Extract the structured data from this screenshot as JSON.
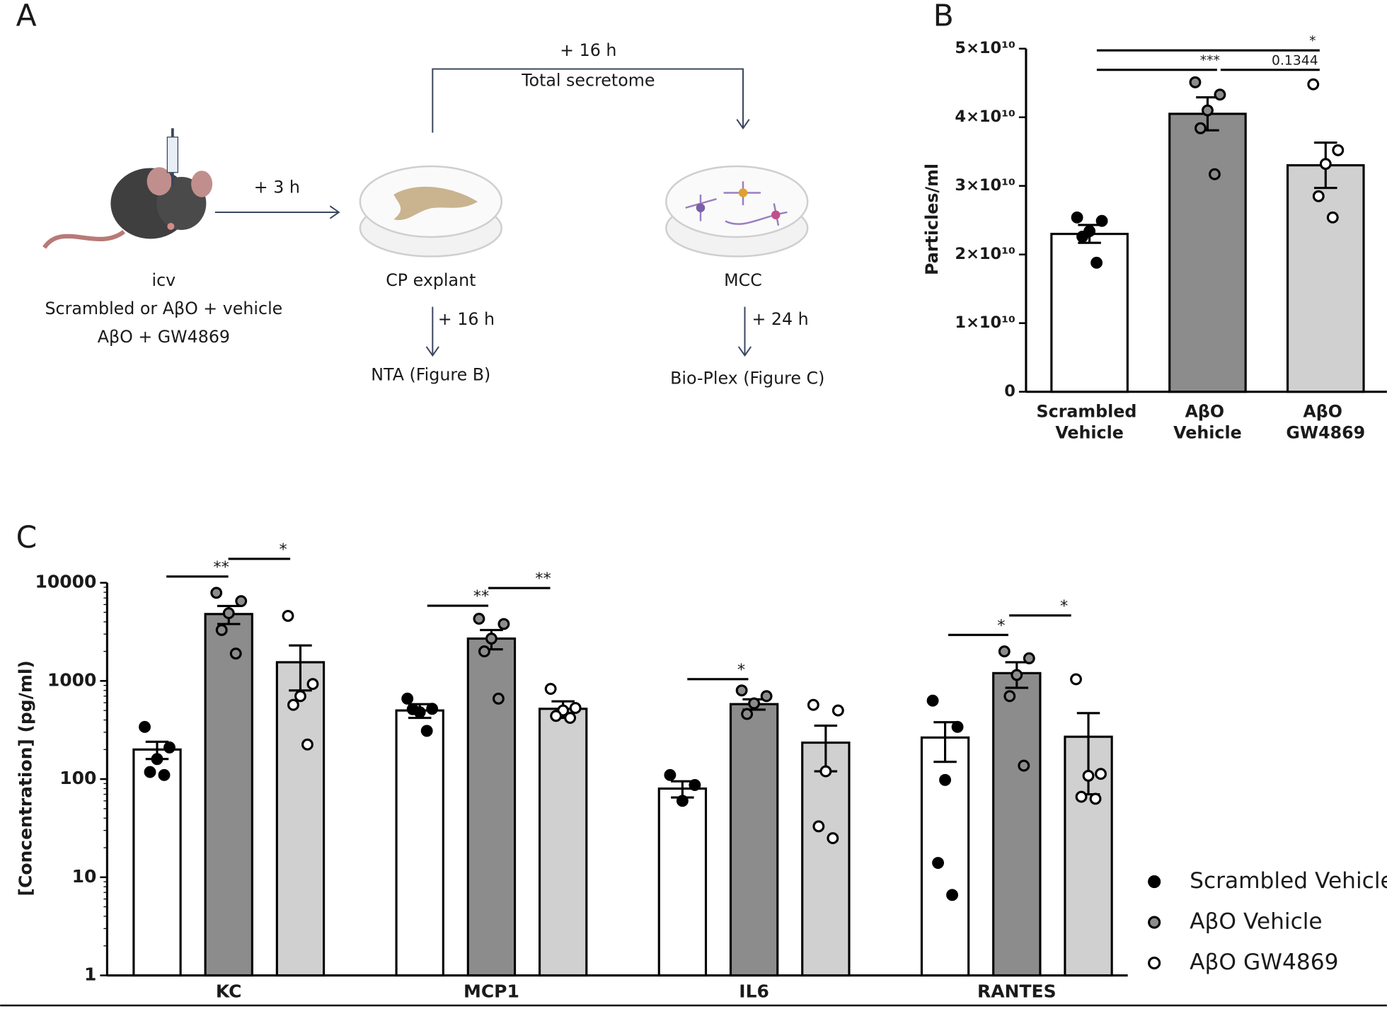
{
  "panel_a": {
    "letter": "A",
    "top_interval": "+ 16 h",
    "top_label": "Total secretome",
    "injection_interval": "+ 3 h",
    "mouse_lines": [
      "icv",
      "Scrambled or AβO + vehicle",
      "AβO + GW4869"
    ],
    "explant_label": "CP explant",
    "explant_interval": "+ 16 h",
    "explant_readout": "NTA (Figure B)",
    "culture_label": "MCC",
    "culture_interval": "+ 24 h",
    "culture_readout": "Bio-Plex (Figure C)"
  },
  "chart_data": [
    {
      "type": "bar",
      "letter": "B",
      "ylabel": "Particles/ml",
      "categories": [
        "Scrambled Vehicle",
        "AβO Vehicle",
        "AβO GW4869"
      ],
      "values": [
        23000000000,
        40500000000,
        33000000000
      ],
      "errors": [
        1300000000,
        2400000000,
        3300000000
      ],
      "colors": [
        "#ffffff",
        "#8c8c8c",
        "#d0d0d0"
      ],
      "point_colors": [
        "#000000",
        "#8c8c8c",
        "#ffffff"
      ],
      "points": [
        [
          25400000000,
          24900000000,
          23400000000,
          22600000000,
          18800000000
        ],
        [
          45100000000,
          43300000000,
          41000000000,
          38400000000,
          31700000000
        ],
        [
          44800000000,
          35200000000,
          33200000000,
          28500000000,
          25400000000
        ]
      ],
      "ylim": [
        0,
        50000000000
      ],
      "yticks": [
        0,
        {
          "value": 10000000000,
          "label": "1×10¹⁰"
        },
        {
          "value": 20000000000,
          "label": "2×10¹⁰"
        },
        {
          "value": 30000000000,
          "label": "3×10¹⁰"
        },
        {
          "value": 40000000000,
          "label": "4×10¹⁰"
        },
        {
          "value": 50000000000,
          "label": "5×10¹⁰"
        }
      ],
      "annotations": [
        "***",
        "0.1344",
        "*"
      ]
    },
    {
      "type": "bar",
      "letter": "C",
      "ylabel": "[Concentration] (pg/ml)",
      "log_scale": true,
      "categories": [
        "KC",
        "MCP1",
        "IL6",
        "RANTES"
      ],
      "series": [
        {
          "name": "Scrambled Vehicle",
          "color": "#ffffff",
          "point_color": "#000000",
          "values": [
            200,
            500,
            80,
            265
          ],
          "errors": [
            40,
            80,
            15,
            115
          ],
          "points": [
            [
              340,
              210,
              160,
              118,
              110
            ],
            [
              660,
              520,
              480,
              515,
              310
            ],
            [
              110,
              87,
              60
            ],
            [
              630,
              340,
              98,
              14,
              6.6
            ]
          ]
        },
        {
          "name": "AβO Vehicle",
          "color": "#8c8c8c",
          "point_color": "#8c8c8c",
          "values": [
            4800,
            2700,
            580,
            1200
          ],
          "errors": [
            1000,
            600,
            70,
            350
          ],
          "points": [
            [
              7900,
              6500,
              4900,
              3300,
              1900
            ],
            [
              4300,
              3800,
              2700,
              2000,
              660
            ],
            [
              800,
              700,
              590,
              460
            ],
            [
              2000,
              1700,
              1150,
              700,
              137
            ]
          ]
        },
        {
          "name": "AβO GW4869",
          "color": "#d0d0d0",
          "point_color": "#ffffff",
          "values": [
            1550,
            520,
            235,
            270
          ],
          "errors": [
            750,
            100,
            115,
            200
          ],
          "points": [
            [
              4600,
              930,
              700,
              570,
              225
            ],
            [
              830,
              530,
              500,
              440,
              420
            ],
            [
              570,
              500,
              120,
              33,
              25
            ],
            [
              1040,
              113,
              108,
              66,
              63
            ]
          ]
        }
      ],
      "ylim": [
        1,
        10000
      ],
      "yticks": [
        1,
        10,
        100,
        1000,
        10000
      ],
      "annotations": [
        "**",
        "*",
        "**",
        "**",
        "*",
        "*",
        "*"
      ]
    }
  ]
}
